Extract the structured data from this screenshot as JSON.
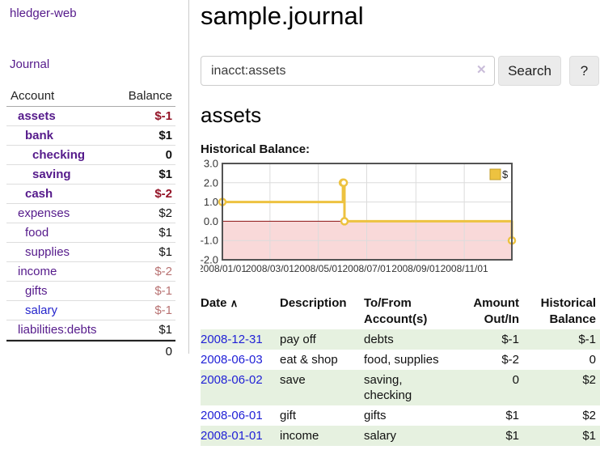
{
  "sidebar": {
    "brand": "hledger-web",
    "journal_link": "Journal",
    "accounts_table": {
      "header": {
        "account": "Account",
        "balance": "Balance"
      },
      "rows": [
        {
          "name": "assets",
          "balance": "$-1"
        },
        {
          "name": "bank",
          "balance": "$1"
        },
        {
          "name": "checking",
          "balance": "0"
        },
        {
          "name": "saving",
          "balance": "$1"
        },
        {
          "name": "cash",
          "balance": "$-2"
        },
        {
          "name": "expenses",
          "balance": "$2"
        },
        {
          "name": "food",
          "balance": "$1"
        },
        {
          "name": "supplies",
          "balance": "$1"
        },
        {
          "name": "income",
          "balance": "$-2"
        },
        {
          "name": "gifts",
          "balance": "$-1"
        },
        {
          "name": "salary",
          "balance": "$-1"
        },
        {
          "name": "liabilities:debts",
          "balance": "$1"
        }
      ],
      "total": "0"
    }
  },
  "header": {
    "title": "sample.journal"
  },
  "search": {
    "value": "inacct:assets",
    "button_label": "Search",
    "help_label": "?"
  },
  "icons": {
    "clear": "✕",
    "sort_ascending": "∧"
  },
  "account_page": {
    "heading": "assets",
    "chart_title": "Historical Balance:"
  },
  "chart_data": {
    "type": "line",
    "style": "step",
    "title": "Historical Balance",
    "series": [
      {
        "name": "$",
        "color": "#EDC240",
        "points": [
          [
            "2008-01-01",
            1
          ],
          [
            "2008-06-01",
            2
          ],
          [
            "2008-06-02",
            2
          ],
          [
            "2008-06-03",
            0
          ],
          [
            "2008-12-31",
            -1
          ]
        ]
      }
    ],
    "xlim": [
      "2008-01-01",
      "2008-12-31"
    ],
    "ylim": [
      -2,
      3
    ],
    "yticks": [
      "3.0",
      "2.0",
      "1.0",
      "0.0",
      "-1.0",
      "-2.0"
    ],
    "xticks": [
      {
        "label": "2008/01/01",
        "date": "2008-01-01"
      },
      {
        "label": "2008/03/01",
        "date": "2008-03-01"
      },
      {
        "label": "2008/05/01",
        "date": "2008-05-01"
      },
      {
        "label": "2008/07/01",
        "date": "2008-07-01"
      },
      {
        "label": "2008/09/01",
        "date": "2008-09-01"
      },
      {
        "label": "2008/11/01",
        "date": "2008-11-01"
      }
    ],
    "grid": true,
    "legend": {
      "label": "$",
      "position": "top-right"
    },
    "colors": {
      "negative_region": "#f9d9d9",
      "zero_line": "#8b1212",
      "border": "#545454",
      "gridline": "#dcdcdc"
    }
  },
  "register": {
    "headers": {
      "date": "Date",
      "description": "Description",
      "tofrom": "To/From Account(s)",
      "amount": "Amount Out/In",
      "historical": "Historical Balance"
    },
    "rows": [
      {
        "date": "2008-12-31",
        "description": "pay off",
        "tofrom": "debts",
        "amount": "$-1",
        "historical": "$-1"
      },
      {
        "date": "2008-06-03",
        "description": "eat & shop",
        "tofrom": "food, supplies",
        "amount": "$-2",
        "historical": "0"
      },
      {
        "date": "2008-06-02",
        "description": "save",
        "tofrom": "saving, checking",
        "amount": "0",
        "historical": "$2"
      },
      {
        "date": "2008-06-01",
        "description": "gift",
        "tofrom": "gifts",
        "amount": "$1",
        "historical": "$2"
      },
      {
        "date": "2008-01-01",
        "description": "income",
        "tofrom": "salary",
        "amount": "$1",
        "historical": "$1"
      }
    ]
  }
}
